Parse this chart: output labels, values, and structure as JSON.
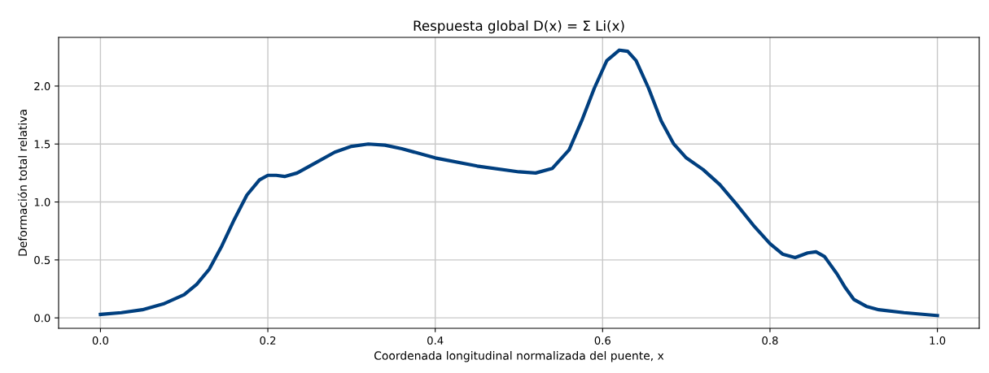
{
  "chart_data": {
    "type": "line",
    "title": "Respuesta global D(x) = Σ Li(x)",
    "xlabel": "Coordenada longitudinal normalizada del puente, x",
    "ylabel": "Deformación total relativa",
    "x": [
      0.0,
      0.025,
      0.05,
      0.075,
      0.1,
      0.115,
      0.13,
      0.145,
      0.16,
      0.175,
      0.19,
      0.2,
      0.21,
      0.22,
      0.235,
      0.25,
      0.28,
      0.3,
      0.32,
      0.34,
      0.36,
      0.4,
      0.45,
      0.5,
      0.52,
      0.54,
      0.56,
      0.575,
      0.59,
      0.605,
      0.62,
      0.63,
      0.64,
      0.655,
      0.67,
      0.685,
      0.7,
      0.72,
      0.74,
      0.76,
      0.78,
      0.8,
      0.815,
      0.83,
      0.845,
      0.855,
      0.865,
      0.88,
      0.89,
      0.9,
      0.915,
      0.93,
      0.96,
      1.0
    ],
    "series": [
      {
        "color": "#003f7f",
        "values": [
          0.03,
          0.045,
          0.07,
          0.12,
          0.2,
          0.29,
          0.42,
          0.62,
          0.85,
          1.06,
          1.19,
          1.23,
          1.23,
          1.22,
          1.25,
          1.31,
          1.43,
          1.48,
          1.5,
          1.49,
          1.46,
          1.38,
          1.31,
          1.26,
          1.25,
          1.29,
          1.45,
          1.7,
          1.98,
          2.22,
          2.31,
          2.3,
          2.22,
          1.98,
          1.7,
          1.5,
          1.38,
          1.28,
          1.15,
          0.98,
          0.8,
          0.64,
          0.55,
          0.52,
          0.56,
          0.57,
          0.53,
          0.38,
          0.26,
          0.16,
          0.1,
          0.07,
          0.045,
          0.02
        ]
      }
    ],
    "xlim": [
      -0.05,
      1.05
    ],
    "ylim": [
      -0.09,
      2.42
    ],
    "xticks": [
      {
        "value": 0.0,
        "label": "0.0"
      },
      0.2,
      0.4,
      0.6,
      0.8,
      {
        "value": 1.0,
        "label": "1.0"
      }
    ],
    "yticks": [
      {
        "value": 0.0,
        "label": "0.0"
      },
      0.5,
      {
        "value": 1.0,
        "label": "1.0"
      },
      1.5,
      {
        "value": 2.0,
        "label": "2.0"
      }
    ],
    "grid": true,
    "marker": "none",
    "line_style": "solid"
  }
}
